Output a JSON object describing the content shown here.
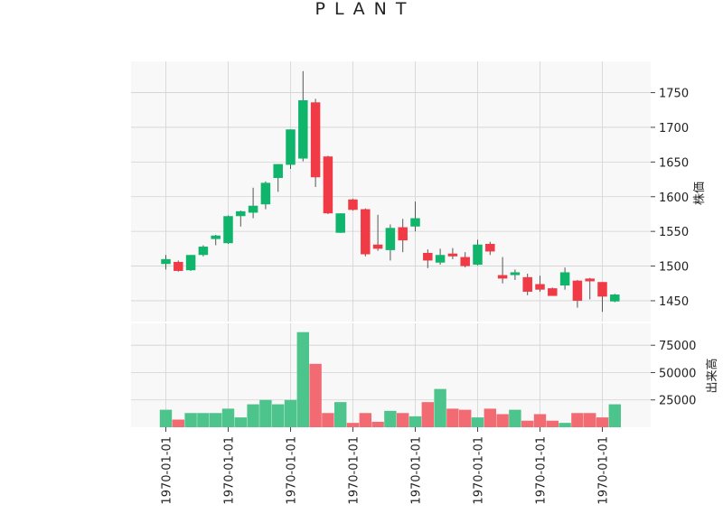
{
  "chart_data": {
    "type": "candlestick",
    "title": "P L A N T",
    "price_axis_label": "株価",
    "volume_axis_label": "出来高",
    "price_ylim": [
      1420,
      1795
    ],
    "volume_ylim": [
      0,
      95000
    ],
    "price_ticks": [
      1450,
      1500,
      1550,
      1600,
      1650,
      1700,
      1750
    ],
    "volume_ticks": [
      25000,
      50000,
      75000
    ],
    "x_tick_labels": [
      "1970-01-01",
      "1970-01-01",
      "1970-01-01",
      "1970-01-01",
      "1970-01-01",
      "1970-01-01",
      "1970-01-01",
      "1970-01-01"
    ],
    "x_tick_positions": [
      0,
      5,
      10,
      15,
      20,
      25,
      30,
      35
    ],
    "grid": true,
    "colors": {
      "up": "#0fb56b",
      "down": "#f03a46",
      "volume_up": "#4cc48b",
      "volume_down": "#f26b73",
      "plot_bg": "#f8f8f8",
      "grid": "#d2d2d2"
    },
    "candles": [
      {
        "o": 1503,
        "h": 1516,
        "l": 1495,
        "c": 1510,
        "v": 16000
      },
      {
        "o": 1506,
        "h": 1508,
        "l": 1492,
        "c": 1493,
        "v": 7000
      },
      {
        "o": 1494,
        "h": 1516,
        "l": 1493,
        "c": 1516,
        "v": 13000
      },
      {
        "o": 1516,
        "h": 1530,
        "l": 1514,
        "c": 1528,
        "v": 13000
      },
      {
        "o": 1539,
        "h": 1545,
        "l": 1530,
        "c": 1544,
        "v": 13000
      },
      {
        "o": 1533,
        "h": 1573,
        "l": 1532,
        "c": 1572,
        "v": 17000
      },
      {
        "o": 1572,
        "h": 1580,
        "l": 1557,
        "c": 1579,
        "v": 9000
      },
      {
        "o": 1577,
        "h": 1613,
        "l": 1569,
        "c": 1587,
        "v": 21000
      },
      {
        "o": 1589,
        "h": 1622,
        "l": 1582,
        "c": 1620,
        "v": 25000
      },
      {
        "o": 1627,
        "h": 1647,
        "l": 1607,
        "c": 1647,
        "v": 21000
      },
      {
        "o": 1646,
        "h": 1697,
        "l": 1640,
        "c": 1697,
        "v": 25000
      },
      {
        "o": 1655,
        "h": 1781,
        "l": 1651,
        "c": 1739,
        "v": 87000
      },
      {
        "o": 1736,
        "h": 1741,
        "l": 1614,
        "c": 1628,
        "v": 58000
      },
      {
        "o": 1658,
        "h": 1659,
        "l": 1575,
        "c": 1576,
        "v": 13000
      },
      {
        "o": 1548,
        "h": 1576,
        "l": 1548,
        "c": 1576,
        "v": 23000
      },
      {
        "o": 1596,
        "h": 1597,
        "l": 1580,
        "c": 1581,
        "v": 4000
      },
      {
        "o": 1582,
        "h": 1583,
        "l": 1514,
        "c": 1517,
        "v": 13000
      },
      {
        "o": 1531,
        "h": 1574,
        "l": 1522,
        "c": 1525,
        "v": 5000
      },
      {
        "o": 1523,
        "h": 1560,
        "l": 1508,
        "c": 1555,
        "v": 15000
      },
      {
        "o": 1556,
        "h": 1568,
        "l": 1520,
        "c": 1537,
        "v": 13000
      },
      {
        "o": 1557,
        "h": 1593,
        "l": 1550,
        "c": 1569,
        "v": 10000
      },
      {
        "o": 1519,
        "h": 1524,
        "l": 1497,
        "c": 1508,
        "v": 23000
      },
      {
        "o": 1505,
        "h": 1525,
        "l": 1502,
        "c": 1516,
        "v": 35000
      },
      {
        "o": 1518,
        "h": 1526,
        "l": 1510,
        "c": 1514,
        "v": 17000
      },
      {
        "o": 1513,
        "h": 1520,
        "l": 1498,
        "c": 1500,
        "v": 16000
      },
      {
        "o": 1502,
        "h": 1538,
        "l": 1501,
        "c": 1531,
        "v": 9000
      },
      {
        "o": 1532,
        "h": 1535,
        "l": 1516,
        "c": 1521,
        "v": 17000
      },
      {
        "o": 1487,
        "h": 1513,
        "l": 1475,
        "c": 1482,
        "v": 12000
      },
      {
        "o": 1487,
        "h": 1495,
        "l": 1480,
        "c": 1491,
        "v": 16000
      },
      {
        "o": 1484,
        "h": 1489,
        "l": 1458,
        "c": 1463,
        "v": 6000
      },
      {
        "o": 1474,
        "h": 1486,
        "l": 1463,
        "c": 1466,
        "v": 12000
      },
      {
        "o": 1468,
        "h": 1469,
        "l": 1457,
        "c": 1457,
        "v": 6000
      },
      {
        "o": 1472,
        "h": 1498,
        "l": 1466,
        "c": 1491,
        "v": 4000
      },
      {
        "o": 1479,
        "h": 1480,
        "l": 1440,
        "c": 1450,
        "v": 13000
      },
      {
        "o": 1482,
        "h": 1483,
        "l": 1452,
        "c": 1478,
        "v": 13000
      },
      {
        "o": 1477,
        "h": 1477,
        "l": 1434,
        "c": 1456,
        "v": 9000
      },
      {
        "o": 1449,
        "h": 1460,
        "l": 1448,
        "c": 1459,
        "v": 21000
      }
    ]
  }
}
